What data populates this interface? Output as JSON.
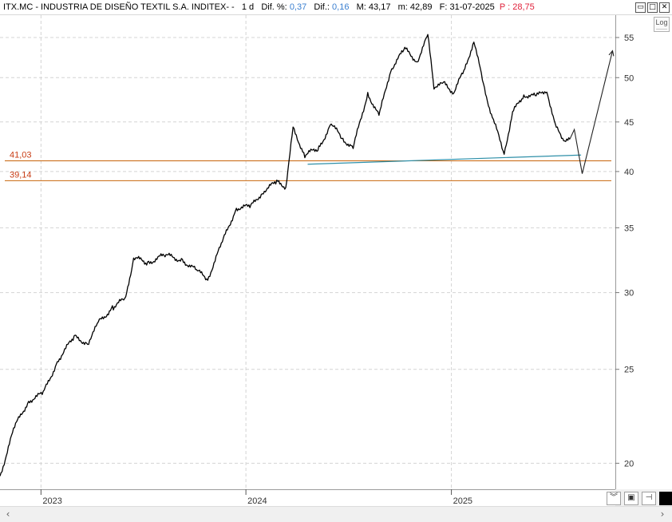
{
  "title_bar": {
    "ticker": "ITX.MC - INDUSTRIA DE DISEÑO TEXTIL S.A. INDITEX- -",
    "timeframe": "1 d",
    "dif_pct_label": "Dif. %:",
    "dif_pct_value": "0,37",
    "dif_label": "Dif.:",
    "dif_value": "0,16",
    "max_label": "M:",
    "max_value": "43,17",
    "min_label": "m:",
    "min_value": "42,89",
    "date_label": "F:",
    "date_value": "31-07-2025",
    "p_label": "P :",
    "p_value": "28,75"
  },
  "window_buttons": {
    "restore": "▭",
    "maximize": "□",
    "close": "✕"
  },
  "log_button": {
    "label": "Log"
  },
  "colors": {
    "price": "#000000",
    "level_line": "#c8640a",
    "trendline": "#2e8fa8",
    "grid": "#d4d4d4",
    "level_label": "#c83c14"
  },
  "chart_data": {
    "type": "line",
    "scale": "log",
    "ylim": [
      18.8,
      58
    ],
    "xlim": [
      "2022-10-20",
      "2025-10-20"
    ],
    "grid": "dashed",
    "y_ticks": [
      20,
      25,
      30,
      35,
      40,
      45,
      50,
      55
    ],
    "x_ticks": [
      {
        "date": "2023-01-01",
        "label": "2023"
      },
      {
        "date": "2024-01-01",
        "label": "2024"
      },
      {
        "date": "2025-01-01",
        "label": "2025"
      }
    ],
    "series": [
      {
        "x": [
          "2022-10-20",
          "2022-11-15",
          "2022-12-10",
          "2023-01-05",
          "2023-02-01",
          "2023-03-01",
          "2023-03-25",
          "2023-04-15",
          "2023-05-10",
          "2023-06-01",
          "2023-06-15",
          "2023-07-10",
          "2023-08-10",
          "2023-09-10",
          "2023-10-05",
          "2023-10-25",
          "2023-11-20",
          "2023-12-15",
          "2024-01-10",
          "2024-02-01",
          "2024-02-25",
          "2024-03-12",
          "2024-03-25",
          "2024-04-15",
          "2024-05-10",
          "2024-06-01",
          "2024-06-20",
          "2024-07-10",
          "2024-08-05",
          "2024-08-25",
          "2024-09-15",
          "2024-10-10",
          "2024-11-01",
          "2024-11-20",
          "2024-12-01",
          "2024-12-20",
          "2025-01-05",
          "2025-01-25",
          "2025-02-10",
          "2025-03-01",
          "2025-03-15",
          "2025-04-05",
          "2025-04-20",
          "2025-05-10",
          "2025-06-01",
          "2025-06-20",
          "2025-07-05",
          "2025-07-20",
          "2025-07-31"
        ],
        "y": [
          19.4,
          21.8,
          23.2,
          23.6,
          25.6,
          27.0,
          26.6,
          28.0,
          29.0,
          29.6,
          32.6,
          32.2,
          32.8,
          32.4,
          31.6,
          31.0,
          33.8,
          36.7,
          36.8,
          38.2,
          39.0,
          38.6,
          44.3,
          41.6,
          42.3,
          44.8,
          43.3,
          42.3,
          48.2,
          45.6,
          51.0,
          53.5,
          52.0,
          55.2,
          49.0,
          49.2,
          48.3,
          51.0,
          54.6,
          48.6,
          45.5,
          41.8,
          46.0,
          48.0,
          47.8,
          48.6,
          44.5,
          43.2,
          43.17
        ]
      }
    ],
    "projection": {
      "x": [
        "2025-07-31",
        "2025-08-08",
        "2025-08-22",
        "2025-10-15"
      ],
      "y": [
        43.2,
        44.2,
        39.8,
        53.3
      ]
    },
    "trendline": {
      "x": [
        "2024-04-20",
        "2025-08-20"
      ],
      "y": [
        40.7,
        41.6
      ]
    },
    "levels": [
      {
        "value": 41.03,
        "label": "41,03"
      },
      {
        "value": 39.14,
        "label": "39,14"
      }
    ]
  }
}
